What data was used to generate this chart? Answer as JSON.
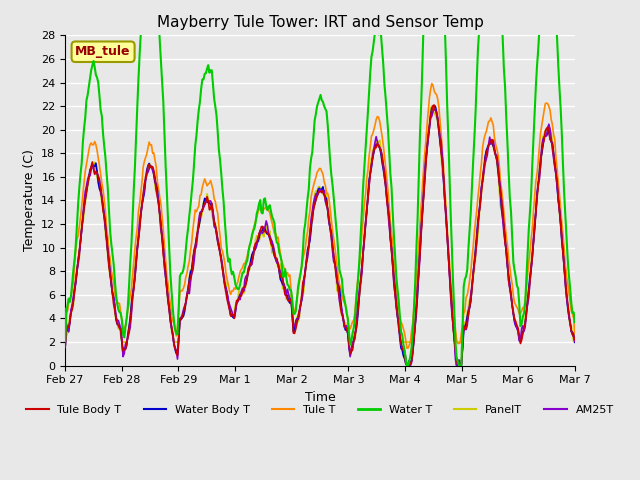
{
  "title": "Mayberry Tule Tower: IRT and Sensor Temp",
  "xlabel": "Time",
  "ylabel": "Temperature (C)",
  "ylim": [
    0,
    28
  ],
  "yticks": [
    0,
    2,
    4,
    6,
    8,
    10,
    12,
    14,
    16,
    18,
    20,
    22,
    24,
    26,
    28
  ],
  "xtick_labels": [
    "Feb 27",
    "Feb 28",
    "Feb 29",
    "Mar 1",
    "Mar 2",
    "Mar 3",
    "Mar 4",
    "Mar 5",
    "Mar 6",
    "Mar 7"
  ],
  "legend_labels": [
    "Tule Body T",
    "Water Body T",
    "Tule T",
    "Water T",
    "PanelT",
    "AM25T"
  ],
  "line_colors": [
    "#cc0000",
    "#0000cc",
    "#ff8800",
    "#00cc00",
    "#cccc00",
    "#8800cc"
  ],
  "line_widths": [
    1.2,
    1.2,
    1.2,
    1.5,
    1.2,
    1.2
  ],
  "bg_color": "#e8e8e8",
  "plot_bg_color": "#e8e8e8",
  "grid_color": "#ffffff",
  "annotation_text": "MB_tule",
  "annotation_color": "#990000",
  "annotation_bg": "#ffff99",
  "annotation_border": "#999900"
}
